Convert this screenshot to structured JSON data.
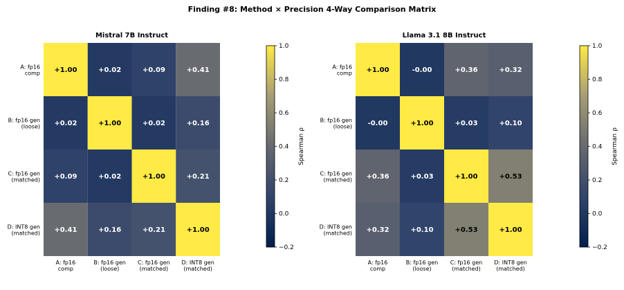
{
  "title": "Finding #8: Method × Precision 4-Way Comparison Matrix",
  "chart_data": [
    {
      "type": "heatmap",
      "title": "Mistral 7B Instruct",
      "colormap": "cividis",
      "categories": [
        "A: fp16\ncomp",
        "B: fp16 gen\n(loose)",
        "C: fp16 gen\n(matched)",
        "D: INT8 gen\n(matched)"
      ],
      "y_categories": [
        "A: fp16\ncomp",
        "B: fp16 gen\n(loose)",
        "C: fp16 gen\n(matched)",
        "D: INT8 gen\n(matched)"
      ],
      "values": [
        [
          1.0,
          0.02,
          0.09,
          0.41
        ],
        [
          0.02,
          1.0,
          0.02,
          0.16
        ],
        [
          0.09,
          0.02,
          1.0,
          0.21
        ],
        [
          0.41,
          0.16,
          0.21,
          1.0
        ]
      ],
      "value_labels": [
        [
          "+1.00",
          "+0.02",
          "+0.09",
          "+0.41"
        ],
        [
          "+0.02",
          "+1.00",
          "+0.02",
          "+0.16"
        ],
        [
          "+0.09",
          "+0.02",
          "+1.00",
          "+0.21"
        ],
        [
          "+0.41",
          "+0.16",
          "+0.21",
          "+1.00"
        ]
      ],
      "colorbar_label": "Spearman ρ",
      "clim": [
        -0.2,
        1.0
      ],
      "cticks": [
        {
          "value": -0.2,
          "label": "−0.2"
        },
        {
          "value": 0,
          "label": "0.0"
        },
        0.2,
        0.4,
        0.6,
        0.8,
        {
          "value": 1,
          "label": "1.0"
        }
      ]
    },
    {
      "type": "heatmap",
      "title": "Llama 3.1 8B Instruct",
      "colormap": "cividis",
      "categories": [
        "A: fp16\ncomp",
        "B: fp16 gen\n(loose)",
        "C: fp16 gen\n(matched)",
        "D: INT8 gen\n(matched)"
      ],
      "y_categories": [
        "A: fp16\ncomp",
        "B: fp16 gen\n(loose)",
        "C: fp16 gen\n(matched)",
        "D: INT8 gen\n(matched)"
      ],
      "values": [
        [
          1.0,
          0,
          0.36,
          0.32
        ],
        [
          0,
          1.0,
          0.03,
          0.1
        ],
        [
          0.36,
          0.03,
          1.0,
          0.53
        ],
        [
          0.32,
          0.1,
          0.53,
          1.0
        ]
      ],
      "value_labels": [
        [
          "+1.00",
          "-0.00",
          "+0.36",
          "+0.32"
        ],
        [
          "-0.00",
          "+1.00",
          "+0.03",
          "+0.10"
        ],
        [
          "+0.36",
          "+0.03",
          "+1.00",
          "+0.53"
        ],
        [
          "+0.32",
          "+0.10",
          "+0.53",
          "+1.00"
        ]
      ],
      "colorbar_label": "Spearman ρ",
      "clim": [
        -0.2,
        1.0
      ],
      "cticks": [
        {
          "value": -0.2,
          "label": "−0.2"
        },
        {
          "value": 0,
          "label": "0.0"
        },
        0.2,
        0.4,
        0.6,
        0.8,
        {
          "value": 1,
          "label": "1.0"
        }
      ]
    }
  ]
}
